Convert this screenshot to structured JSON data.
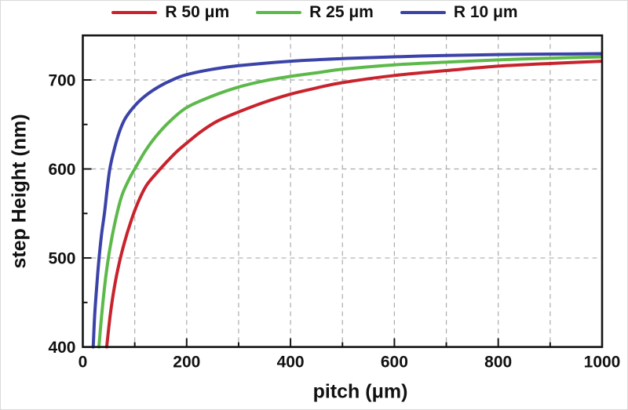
{
  "figure": {
    "background": "#ffffff",
    "frame_color": "#141414",
    "legend": [
      {
        "label": "R 50 μm",
        "color": "#c8232c"
      },
      {
        "label": "R 25 μm",
        "color": "#5cb94a"
      },
      {
        "label": "R 10 μm",
        "color": "#3b43a8"
      }
    ]
  },
  "chart_data": {
    "type": "line",
    "title": "",
    "xlabel": "pitch (μm)",
    "ylabel": "step Height (nm)",
    "xlim": [
      0,
      1000
    ],
    "ylim": [
      400,
      750
    ],
    "x_major_ticks": [
      0,
      200,
      400,
      600,
      800,
      1000
    ],
    "x_minor_ticks": [
      100,
      300,
      500,
      700,
      900
    ],
    "x_tick_labels": [
      "0",
      "200",
      "400",
      "600",
      "800",
      "1000"
    ],
    "y_major_ticks": [
      400,
      500,
      600,
      700
    ],
    "y_minor_ticks": [
      450,
      550,
      650,
      750
    ],
    "y_tick_labels": [
      "400",
      "500",
      "600",
      "700"
    ],
    "grid": {
      "vertical_lines": [
        100,
        200,
        300,
        400,
        500,
        600,
        700,
        800,
        900
      ],
      "horizontal_lines": [
        500,
        600,
        700
      ],
      "style": "dashed",
      "color": "#ababab"
    },
    "legend_position": "top-center",
    "series": [
      {
        "name": "R 50 μm",
        "color": "#c8232c",
        "points": [
          [
            46,
            400
          ],
          [
            53,
            437
          ],
          [
            61,
            468
          ],
          [
            70,
            494
          ],
          [
            80,
            517
          ],
          [
            92,
            540
          ],
          [
            106,
            562
          ],
          [
            122,
            581
          ],
          [
            140,
            594
          ],
          [
            160,
            607
          ],
          [
            180,
            619
          ],
          [
            200,
            629
          ],
          [
            230,
            643
          ],
          [
            260,
            654
          ],
          [
            300,
            664
          ],
          [
            350,
            675
          ],
          [
            400,
            684
          ],
          [
            450,
            691
          ],
          [
            500,
            697
          ],
          [
            600,
            705
          ],
          [
            700,
            710.5
          ],
          [
            800,
            715.5
          ],
          [
            900,
            718.5
          ],
          [
            1000,
            721
          ]
        ]
      },
      {
        "name": "R 25 μm",
        "color": "#5cb94a",
        "points": [
          [
            31,
            400
          ],
          [
            37,
            440
          ],
          [
            44,
            478
          ],
          [
            52,
            510
          ],
          [
            62,
            540
          ],
          [
            74,
            568
          ],
          [
            87,
            586
          ],
          [
            100,
            600
          ],
          [
            120,
            620
          ],
          [
            140,
            636
          ],
          [
            165,
            652
          ],
          [
            200,
            669
          ],
          [
            250,
            682
          ],
          [
            300,
            692
          ],
          [
            350,
            699
          ],
          [
            400,
            704
          ],
          [
            450,
            708
          ],
          [
            500,
            712
          ],
          [
            600,
            717
          ],
          [
            700,
            720
          ],
          [
            800,
            722.5
          ],
          [
            900,
            724.5
          ],
          [
            1000,
            726
          ]
        ]
      },
      {
        "name": "R 10 μm",
        "color": "#3b43a8",
        "points": [
          [
            20,
            400
          ],
          [
            23,
            437
          ],
          [
            27,
            470
          ],
          [
            31,
            498
          ],
          [
            36,
            526
          ],
          [
            42,
            552
          ],
          [
            47,
            578
          ],
          [
            52,
            600
          ],
          [
            60,
            621
          ],
          [
            70,
            641
          ],
          [
            82,
            657
          ],
          [
            100,
            671
          ],
          [
            120,
            682
          ],
          [
            145,
            692
          ],
          [
            172,
            700
          ],
          [
            200,
            706
          ],
          [
            250,
            712
          ],
          [
            300,
            716
          ],
          [
            400,
            721
          ],
          [
            500,
            724
          ],
          [
            600,
            726
          ],
          [
            700,
            727.5
          ],
          [
            800,
            728.5
          ],
          [
            900,
            729
          ],
          [
            1000,
            729.5
          ]
        ]
      }
    ]
  }
}
